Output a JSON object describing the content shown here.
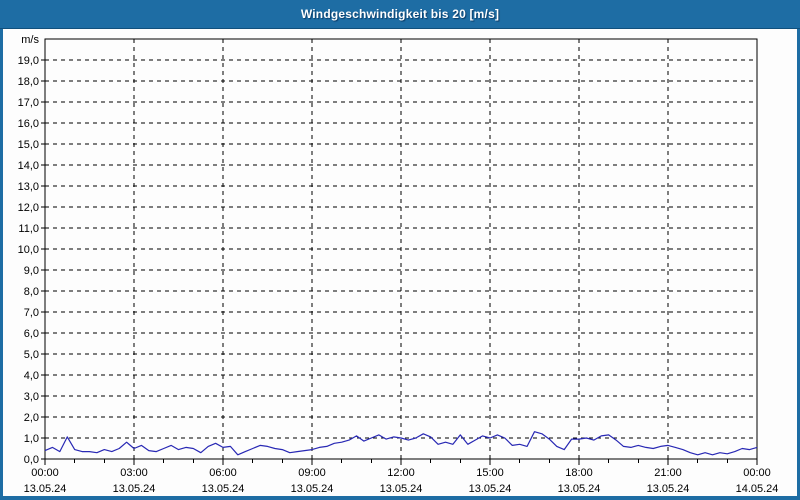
{
  "window": {
    "title": "Windgeschwindigkeit bis 20 [m/s]"
  },
  "colors": {
    "titlebar": "#1E6DA4",
    "frame": "#1E6DA4",
    "titlebar_text": "#FFFFFF",
    "plot_background": "#FDFDFD",
    "grid": "#000000",
    "series_line": "#2828B4"
  },
  "chart_data": {
    "type": "line",
    "title": "Windgeschwindigkeit bis 20 [m/s]",
    "unit_label": "m/s",
    "xlabel": "",
    "ylabel": "m/s",
    "ylim": [
      0,
      20
    ],
    "xlim_hours": [
      0,
      24
    ],
    "grid": "dashed",
    "legend": "none",
    "y_ticks": [
      {
        "value": 0,
        "label": "0,0"
      },
      {
        "value": 1,
        "label": "1,0"
      },
      {
        "value": 2,
        "label": "2,0"
      },
      {
        "value": 3,
        "label": "3,0"
      },
      {
        "value": 4,
        "label": "4,0"
      },
      {
        "value": 5,
        "label": "5,0"
      },
      {
        "value": 6,
        "label": "6,0"
      },
      {
        "value": 7,
        "label": "7,0"
      },
      {
        "value": 8,
        "label": "8,0"
      },
      {
        "value": 9,
        "label": "9,0"
      },
      {
        "value": 10,
        "label": "10,0"
      },
      {
        "value": 11,
        "label": "11,0"
      },
      {
        "value": 12,
        "label": "12,0"
      },
      {
        "value": 13,
        "label": "13,0"
      },
      {
        "value": 14,
        "label": "14,0"
      },
      {
        "value": 15,
        "label": "15,0"
      },
      {
        "value": 16,
        "label": "16,0"
      },
      {
        "value": 17,
        "label": "17,0"
      },
      {
        "value": 18,
        "label": "18,0"
      },
      {
        "value": 19,
        "label": "19,0"
      }
    ],
    "x_ticks": [
      {
        "hour": 0,
        "time": "00:00",
        "date": "13.05.24"
      },
      {
        "hour": 3,
        "time": "03:00",
        "date": "13.05.24"
      },
      {
        "hour": 6,
        "time": "06:00",
        "date": "13.05.24"
      },
      {
        "hour": 9,
        "time": "09:00",
        "date": "13.05.24"
      },
      {
        "hour": 12,
        "time": "12:00",
        "date": "13.05.24"
      },
      {
        "hour": 15,
        "time": "15:00",
        "date": "13.05.24"
      },
      {
        "hour": 18,
        "time": "18:00",
        "date": "13.05.24"
      },
      {
        "hour": 21,
        "time": "21:00",
        "date": "13.05.24"
      },
      {
        "hour": 24,
        "time": "00:00",
        "date": "14.05.24"
      }
    ],
    "minor_x_tick_every_hours": 1,
    "series": [
      {
        "name": "Windgeschwindigkeit",
        "color": "#2828B4",
        "x_step_hours": 0.25,
        "values": [
          0.4,
          0.55,
          0.35,
          1.05,
          0.45,
          0.35,
          0.35,
          0.3,
          0.45,
          0.35,
          0.5,
          0.8,
          0.5,
          0.65,
          0.4,
          0.35,
          0.5,
          0.65,
          0.45,
          0.55,
          0.5,
          0.3,
          0.6,
          0.75,
          0.55,
          0.6,
          0.2,
          0.35,
          0.5,
          0.65,
          0.6,
          0.5,
          0.45,
          0.3,
          0.35,
          0.4,
          0.45,
          0.55,
          0.6,
          0.75,
          0.8,
          0.9,
          1.1,
          0.85,
          1.0,
          1.15,
          0.95,
          1.05,
          1.0,
          0.9,
          1.0,
          1.2,
          1.05,
          0.7,
          0.8,
          0.7,
          1.15,
          0.7,
          0.9,
          1.1,
          1.0,
          1.15,
          1.0,
          0.65,
          0.7,
          0.6,
          1.3,
          1.2,
          0.95,
          0.6,
          0.45,
          0.95,
          0.95,
          1.0,
          0.9,
          1.1,
          1.15,
          0.9,
          0.6,
          0.55,
          0.65,
          0.55,
          0.5,
          0.6,
          0.65,
          0.55,
          0.45,
          0.3,
          0.2,
          0.3,
          0.2,
          0.3,
          0.25,
          0.35,
          0.5,
          0.45,
          0.55
        ]
      }
    ]
  }
}
